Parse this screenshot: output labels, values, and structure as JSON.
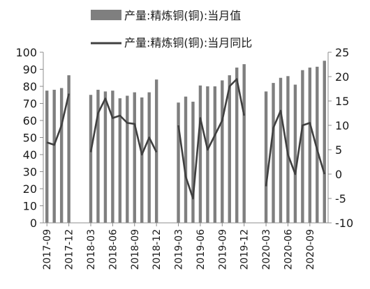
{
  "chart_data": {
    "type": "bar",
    "series": [
      {
        "name": "产量:精炼铜(铜):当月值",
        "kind": "bar",
        "axis": "left",
        "color": "#7f7f7f",
        "values": [
          77.5,
          78,
          79,
          86.5,
          null,
          null,
          75,
          78,
          77,
          77.5,
          73,
          74.5,
          76.5,
          73.5,
          76.5,
          84,
          null,
          null,
          70.5,
          74,
          71,
          80.5,
          80,
          80,
          83.5,
          86.5,
          91,
          93,
          null,
          null,
          77,
          82,
          85,
          86,
          81,
          89.5,
          91,
          91.5,
          95
        ]
      },
      {
        "name": "产量:精炼铜(铜):当月同比",
        "kind": "line",
        "axis": "right",
        "color": "#404040",
        "values": [
          6.5,
          6,
          10,
          16.5,
          null,
          null,
          4.5,
          12.5,
          15.5,
          11.5,
          12,
          10.5,
          10.3,
          4,
          7.5,
          4.5,
          null,
          null,
          10,
          -0.5,
          -5,
          11.5,
          5,
          8,
          11,
          18,
          19.5,
          12,
          null,
          null,
          -2.5,
          9.5,
          13,
          4,
          0,
          10,
          10.5,
          5,
          0
        ]
      }
    ],
    "x_ticks": [
      "2017-09",
      "2017-12",
      "2018-03",
      "2018-06",
      "2018-09",
      "2018-12",
      "2019-03",
      "2019-06",
      "2019-09",
      "2019-12",
      "2020-03",
      "2020-06",
      "2020-09"
    ],
    "x_tick_every": 3,
    "y_left": {
      "min": 0,
      "max": 100,
      "step": 10,
      "ticks": [
        "0",
        "10",
        "20",
        "30",
        "40",
        "50",
        "60",
        "70",
        "80",
        "90",
        "100"
      ]
    },
    "y_right": {
      "min": -10,
      "max": 25,
      "step": 5,
      "ticks": [
        "-10",
        "-5",
        "0",
        "5",
        "10",
        "15",
        "20",
        "25"
      ]
    },
    "legend": {
      "placement": "top",
      "entries": [
        {
          "label": "产量:精炼铜(铜):当月值",
          "symbol": "bar"
        },
        {
          "label": "产量:精炼铜(铜):当月同比",
          "symbol": "line"
        }
      ]
    },
    "grid": false
  }
}
